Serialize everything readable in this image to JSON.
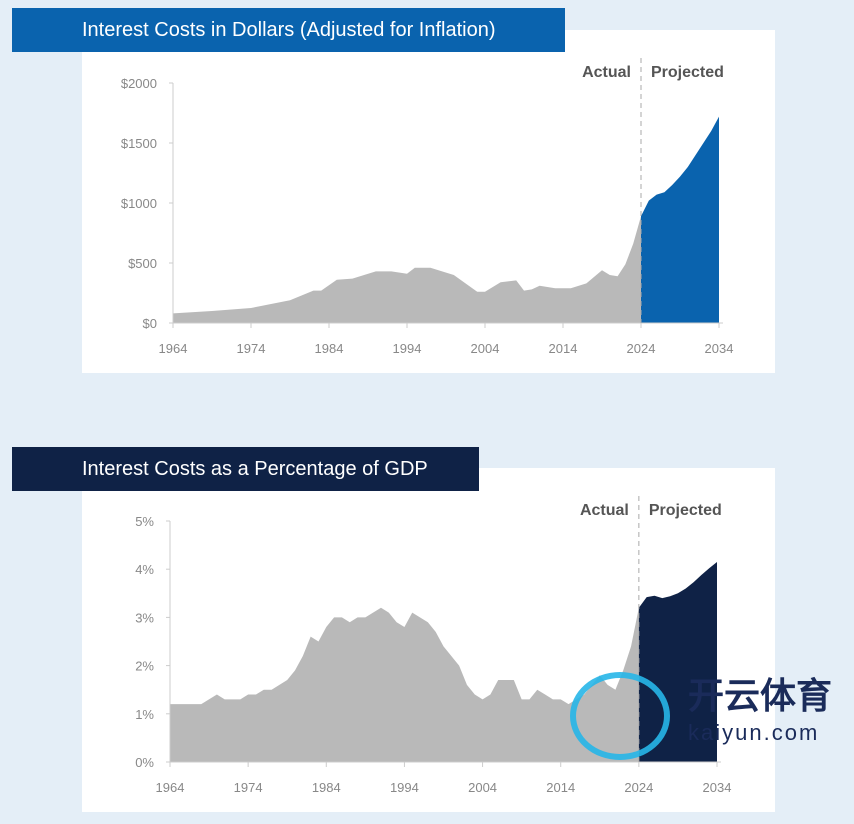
{
  "chart_data": [
    {
      "type": "area",
      "title": "Interest Costs in Dollars (Adjusted for Inflation)",
      "xlabel": "",
      "ylabel": "",
      "xlim": [
        1964,
        2034
      ],
      "ylim": [
        0,
        2000
      ],
      "yticks": [
        0,
        500,
        1000,
        1500,
        2000
      ],
      "ytick_labels": [
        "$0",
        "$500",
        "$1000",
        "$1500",
        "$2000"
      ],
      "xticks": [
        "1964",
        "1974",
        "1984",
        "1994",
        "2004",
        "2014",
        "2024",
        "2034"
      ],
      "annotations": [
        "Actual",
        "Projected"
      ],
      "divider_year": 2024,
      "colors": {
        "actual": "#b9b9b9",
        "projected": "#0a63ae",
        "title_bg": "#0a63ae"
      },
      "series": [
        {
          "name": "Actual",
          "x": [
            1964,
            1969,
            1974,
            1979,
            1982,
            1983,
            1985,
            1987,
            1990,
            1992,
            1994,
            1995,
            1997,
            2000,
            2003,
            2004,
            2006,
            2008,
            2009,
            2010,
            2011,
            2013,
            2015,
            2017,
            2019,
            2020,
            2021,
            2022,
            2023,
            2024
          ],
          "y": [
            80,
            100,
            125,
            190,
            270,
            270,
            360,
            370,
            430,
            430,
            410,
            460,
            460,
            400,
            260,
            260,
            340,
            355,
            270,
            280,
            310,
            290,
            290,
            330,
            440,
            400,
            390,
            490,
            660,
            890
          ]
        },
        {
          "name": "Projected",
          "x": [
            2024,
            2025,
            2026,
            2027,
            2028,
            2029,
            2030,
            2031,
            2032,
            2033,
            2034
          ],
          "y": [
            890,
            1020,
            1070,
            1090,
            1150,
            1220,
            1300,
            1400,
            1500,
            1600,
            1720
          ]
        }
      ]
    },
    {
      "type": "area",
      "title": "Interest Costs as a Percentage of GDP",
      "xlabel": "",
      "ylabel": "",
      "xlim": [
        1964,
        2034
      ],
      "ylim": [
        0,
        5
      ],
      "yticks": [
        0,
        1,
        2,
        3,
        4,
        5
      ],
      "ytick_labels": [
        "0%",
        "1%",
        "2%",
        "3%",
        "4%",
        "5%"
      ],
      "xticks": [
        "1964",
        "1974",
        "1984",
        "1994",
        "2004",
        "2014",
        "2024",
        "2034"
      ],
      "annotations": [
        "Actual",
        "Projected"
      ],
      "divider_year": 2024,
      "colors": {
        "actual": "#b9b9b9",
        "projected": "#0f2246",
        "title_bg": "#0f2246"
      },
      "series": [
        {
          "name": "Actual",
          "x": [
            1964,
            1968,
            1970,
            1971,
            1973,
            1974,
            1975,
            1976,
            1977,
            1979,
            1980,
            1981,
            1982,
            1983,
            1984,
            1985,
            1986,
            1987,
            1988,
            1989,
            1991,
            1992,
            1993,
            1994,
            1995,
            1997,
            1998,
            1999,
            2001,
            2002,
            2003,
            2004,
            2005,
            2006,
            2008,
            2009,
            2010,
            2011,
            2012,
            2013,
            2014,
            2015,
            2017,
            2018,
            2019,
            2020,
            2021,
            2022,
            2023,
            2024
          ],
          "y": [
            1.2,
            1.2,
            1.4,
            1.3,
            1.3,
            1.4,
            1.4,
            1.5,
            1.5,
            1.7,
            1.9,
            2.2,
            2.6,
            2.5,
            2.8,
            3.0,
            3.0,
            2.9,
            3.0,
            3.0,
            3.2,
            3.1,
            2.9,
            2.8,
            3.1,
            2.9,
            2.7,
            2.4,
            2.0,
            1.6,
            1.4,
            1.3,
            1.4,
            1.7,
            1.7,
            1.3,
            1.3,
            1.5,
            1.4,
            1.3,
            1.3,
            1.2,
            1.4,
            1.6,
            1.8,
            1.6,
            1.5,
            1.9,
            2.4,
            3.2
          ]
        },
        {
          "name": "Projected",
          "x": [
            2024,
            2025,
            2026,
            2027,
            2028,
            2029,
            2030,
            2031,
            2032,
            2033,
            2034
          ],
          "y": [
            3.2,
            3.42,
            3.45,
            3.4,
            3.44,
            3.5,
            3.6,
            3.73,
            3.88,
            4.02,
            4.15
          ]
        }
      ]
    }
  ],
  "watermark": {
    "cn": "开云体育",
    "en": "kaiyun.com"
  }
}
